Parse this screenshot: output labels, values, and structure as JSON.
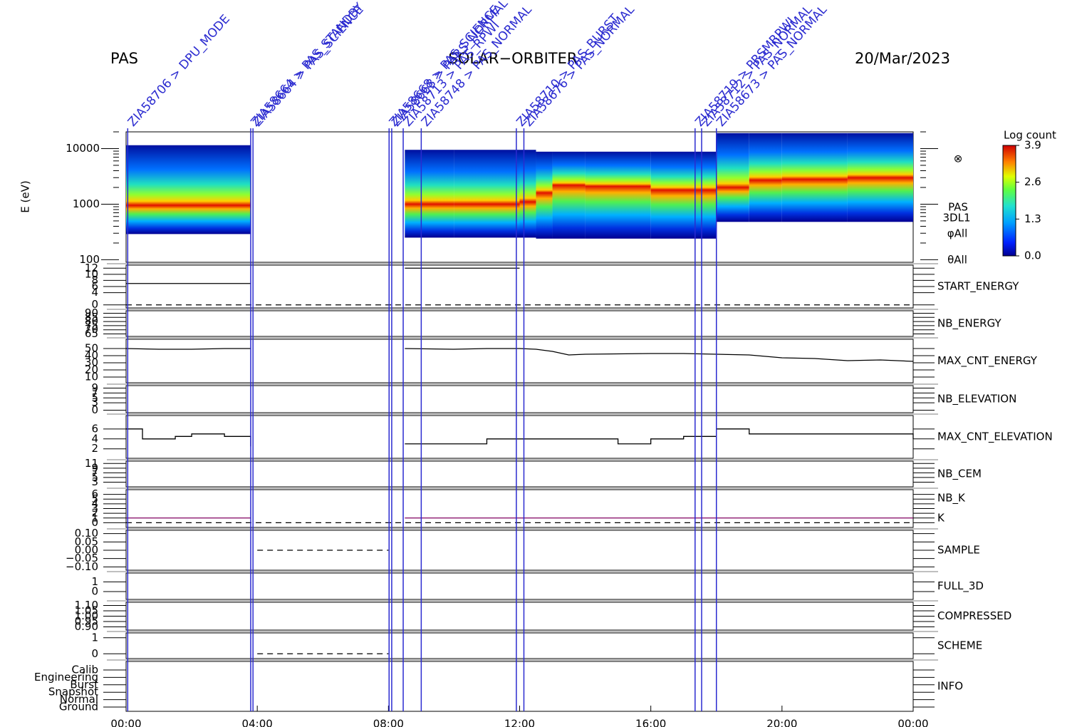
{
  "header": {
    "left": "PAS",
    "center": "SOLAR−ORBITER",
    "right": "20/Mar/2023"
  },
  "chart_data": [
    {
      "type": "spectrogram",
      "y_label": "E (eV)",
      "log_y": true,
      "xlim": [
        0,
        24
      ],
      "ylim": [
        90,
        20000
      ],
      "yticks": [
        100,
        1000,
        10000
      ],
      "symbol": "⊗",
      "side_labels": [
        "PAS",
        "3DL1",
        "φAll",
        "θAll"
      ],
      "colorbar": {
        "title": "Log count",
        "lim": [
          0,
          3.9
        ],
        "ticks": [
          {
            "value": 0,
            "label": "0.0"
          },
          {
            "value": 1.3,
            "label": "1.3"
          },
          {
            "value": 2.6,
            "label": "2.6"
          },
          {
            "value": 3.9,
            "label": "3.9"
          }
        ]
      },
      "segments": [
        {
          "x": [
            0,
            3.8
          ],
          "low": 290,
          "high": 11500,
          "peak": 950
        },
        {
          "x": [
            8.5,
            10
          ],
          "low": 250,
          "high": 9500,
          "peak": 1000
        },
        {
          "x": [
            10,
            12
          ],
          "low": 250,
          "high": 9500,
          "peak": 1000
        },
        {
          "x": [
            12,
            12.5
          ],
          "low": 250,
          "high": 9500,
          "peak": 1100
        },
        {
          "x": [
            12.5,
            13
          ],
          "low": 240,
          "high": 8800,
          "peak": 1600
        },
        {
          "x": [
            13,
            14
          ],
          "low": 240,
          "high": 8800,
          "peak": 2200
        },
        {
          "x": [
            14,
            16
          ],
          "low": 240,
          "high": 8800,
          "peak": 2100
        },
        {
          "x": [
            16,
            18
          ],
          "low": 240,
          "high": 8800,
          "peak": 1800
        },
        {
          "x": [
            18,
            19
          ],
          "low": 480,
          "high": 19000,
          "peak": 2000
        },
        {
          "x": [
            19,
            20
          ],
          "low": 480,
          "high": 19000,
          "peak": 2700
        },
        {
          "x": [
            20,
            22
          ],
          "low": 480,
          "high": 19000,
          "peak": 2800
        },
        {
          "x": [
            22,
            24
          ],
          "low": 480,
          "high": 19000,
          "peak": 3000
        }
      ],
      "events": [
        {
          "x": 0.05,
          "label": "ZIA58706 > DPU_MODE"
        },
        {
          "x": 3.8,
          "label": "ZIA58664 > PAS_STANDBY"
        },
        {
          "x": 3.87,
          "label": "ZIA58664 > PAS_SCIENCE"
        },
        {
          "x": 8.02,
          "label": "ZIA58668 > PAS_SCIENCE"
        },
        {
          "x": 8.1,
          "label": "ZIA58668 > PARS_NORMAL"
        },
        {
          "x": 8.45,
          "label": "ZIA58713 > PAS_RPWI"
        },
        {
          "x": 9.0,
          "label": "ZIA58748 > PAS_NORMAL"
        },
        {
          "x": 11.9,
          "label": "ZIA58710 > PAS_BURST"
        },
        {
          "x": 12.13,
          "label": "ZIA58676 > PAS_NORMAL"
        },
        {
          "x": 17.35,
          "label": "ZIA58719 > PRSMRPWI"
        },
        {
          "x": 17.55,
          "label": "ZIA58712 > PAS_NORMAL"
        },
        {
          "x": 18.0,
          "label": "ZIA58673 > PAS_NORMAL"
        }
      ]
    },
    {
      "type": "line",
      "labels": [
        {
          "text": "START_ENERGY",
          "color": "#000000"
        }
      ],
      "ylim": [
        -1,
        13
      ],
      "yticks": [
        0,
        4,
        6,
        8,
        10,
        12
      ],
      "series": [
        {
          "color": "#000000",
          "dash": true,
          "x": [
            0,
            24
          ],
          "values": [
            0,
            0
          ]
        },
        {
          "color": "#000000",
          "dash": false,
          "x": [
            0,
            3.8,
            6,
            8.5,
            12
          ],
          "values": [
            7,
            7,
            null,
            12,
            12
          ]
        }
      ]
    },
    {
      "type": "line",
      "labels": [
        {
          "text": "NB_ENERGY",
          "color": "#2222aa"
        }
      ],
      "ylim": [
        62,
        93
      ],
      "yticks": [
        65,
        70,
        75,
        80,
        85,
        90
      ],
      "series": []
    },
    {
      "type": "line",
      "labels": [
        {
          "text": "MAX_CNT_ENERGY",
          "color": "#000000"
        }
      ],
      "ylim": [
        2,
        63
      ],
      "yticks": [
        10,
        20,
        30,
        40,
        50
      ],
      "series": [
        {
          "color": "#000000",
          "dash": false,
          "x": [
            0,
            1,
            2,
            3,
            3.8,
            6,
            8.5,
            10,
            11,
            12,
            12.5,
            13,
            13.5,
            14,
            16,
            17,
            18,
            19,
            20,
            21,
            22,
            23,
            24
          ],
          "values": [
            50,
            49,
            49,
            50,
            50,
            null,
            50,
            49,
            50,
            50,
            49,
            46,
            41,
            42,
            43,
            43,
            42,
            41,
            37,
            36,
            33,
            34,
            32
          ]
        }
      ]
    },
    {
      "type": "line",
      "labels": [
        {
          "text": "NB_ELEVATION",
          "color": "#2222aa"
        }
      ],
      "ylim": [
        -1,
        10
      ],
      "yticks": [
        0,
        3,
        5,
        7,
        9
      ],
      "series": []
    },
    {
      "type": "line",
      "labels": [
        {
          "text": "MAX_CNT_ELEVATION",
          "color": "#000000"
        }
      ],
      "ylim": [
        0.1,
        8.7
      ],
      "yticks": [
        2,
        4,
        6
      ],
      "series": [
        {
          "color": "#000000",
          "dash": false,
          "step": true,
          "x": [
            0,
            0.5,
            1,
            1.5,
            2,
            3,
            3.8,
            6,
            8.5,
            10,
            11,
            13,
            14,
            15,
            16,
            17,
            18,
            19,
            20,
            21,
            22,
            23,
            24
          ],
          "values": [
            6,
            4,
            4,
            4.5,
            5,
            4.5,
            2.5,
            null,
            3,
            3,
            4,
            4,
            4,
            3,
            4,
            4.5,
            6,
            5,
            5,
            5,
            5,
            5,
            4
          ]
        }
      ]
    },
    {
      "type": "line",
      "labels": [
        {
          "text": "NB_CEM",
          "color": "#2222aa"
        }
      ],
      "ylim": [
        1,
        12
      ],
      "yticks": [
        3,
        5,
        7,
        9,
        11
      ],
      "series": []
    },
    {
      "type": "line",
      "labels": [
        {
          "text": "NB_K",
          "color": "#dd2222"
        },
        {
          "text": "K",
          "color": "#2222aa"
        }
      ],
      "ylim": [
        -1,
        7
      ],
      "yticks": [
        0,
        1,
        2,
        3,
        4,
        5,
        6
      ],
      "series": [
        {
          "color": "#000000",
          "dash": true,
          "x": [
            0,
            24
          ],
          "values": [
            0,
            0
          ]
        },
        {
          "color": "#800060",
          "dash": false,
          "x": [
            0,
            3.8,
            6,
            8.5,
            24
          ],
          "values": [
            1,
            1,
            null,
            1,
            1
          ]
        }
      ]
    },
    {
      "type": "line",
      "labels": [
        {
          "text": "SAMPLE",
          "color": "#2222aa"
        }
      ],
      "ylim": [
        -0.12,
        0.12
      ],
      "yticks": [
        {
          "value": -0.1,
          "label": "−0.10"
        },
        {
          "value": -0.05,
          "label": "−0.05"
        },
        {
          "value": 0,
          "label": "0.00"
        },
        {
          "value": 0.05,
          "label": "0.05"
        },
        {
          "value": 0.1,
          "label": "0.10"
        }
      ],
      "series": [
        {
          "color": "#000000",
          "dash": true,
          "x": [
            4,
            8
          ],
          "values": [
            0,
            0
          ]
        }
      ]
    },
    {
      "type": "line",
      "labels": [
        {
          "text": "FULL_3D",
          "color": "#2222aa"
        }
      ],
      "ylim": [
        -0.8,
        1.9
      ],
      "yticks": [
        0,
        1
      ],
      "series": []
    },
    {
      "type": "line",
      "labels": [
        {
          "text": "COMPRESSED",
          "color": "#000000"
        }
      ],
      "ylim": [
        0.87,
        1.13
      ],
      "yticks": [
        {
          "value": 0.9,
          "label": "0.90"
        },
        {
          "value": 0.95,
          "label": "0.95"
        },
        {
          "value": 1,
          "label": "1.00"
        },
        {
          "value": 1.05,
          "label": "1.05"
        },
        {
          "value": 1.1,
          "label": "1.10"
        }
      ],
      "series": []
    },
    {
      "type": "line",
      "labels": [
        {
          "text": "SCHEME",
          "color": "#000000"
        }
      ],
      "ylim": [
        -0.3,
        1.3
      ],
      "yticks": [
        0,
        1
      ],
      "series": [
        {
          "color": "#000000",
          "dash": true,
          "x": [
            4,
            8
          ],
          "values": [
            0,
            0
          ]
        }
      ]
    },
    {
      "type": "category",
      "labels": [
        {
          "text": "INFO",
          "color": "#000000"
        }
      ],
      "ycategories": [
        "Calib",
        "Engineering",
        "Burst",
        "Snapshot",
        "Normal",
        "Ground"
      ],
      "xlim": [
        0,
        24
      ],
      "xticks": [
        {
          "value": 0,
          "label": "00:00"
        },
        {
          "value": 4,
          "label": "04:00"
        },
        {
          "value": 8,
          "label": "08:00"
        },
        {
          "value": 12,
          "label": "12:00"
        },
        {
          "value": 16,
          "label": "16:00"
        },
        {
          "value": 20,
          "label": "20:00"
        },
        {
          "value": 24,
          "label": "00:00"
        }
      ],
      "series": []
    }
  ]
}
